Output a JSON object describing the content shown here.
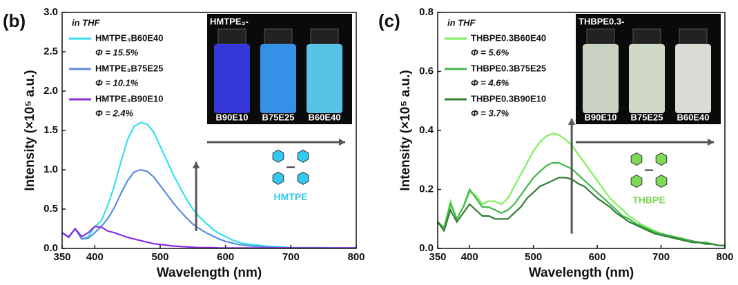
{
  "chart_data": [
    {
      "type": "line",
      "panel": "(b)",
      "annotation": "in THF",
      "x_label": "Wavelength (nm)",
      "y_label": "Intensity (×10⁵ a.u.)",
      "x": [
        350,
        360,
        370,
        380,
        390,
        400,
        410,
        420,
        430,
        440,
        450,
        460,
        470,
        480,
        490,
        500,
        510,
        520,
        530,
        540,
        550,
        560,
        570,
        580,
        590,
        600,
        610,
        620,
        630,
        640,
        650,
        660,
        670,
        680,
        690,
        700,
        710,
        720,
        730,
        740,
        750,
        760,
        770,
        780,
        790,
        800
      ],
      "xlim": [
        350,
        800
      ],
      "xticks": [
        350,
        400,
        500,
        600,
        700,
        800
      ],
      "ylim": [
        0,
        3
      ],
      "yticks": [
        {
          "value": 0,
          "label": "0.0"
        },
        0.5,
        {
          "value": 1,
          "label": "1.0"
        },
        1.5,
        {
          "value": 2,
          "label": "2.0"
        },
        2.5,
        {
          "value": 3,
          "label": "3.0"
        }
      ],
      "legend": "upper left",
      "series": [
        {
          "name": "HMTPE₃B60E40",
          "annotation": "Φ = 15.5%",
          "color": "#33e0f0",
          "values": [
            0.2,
            0.15,
            0.25,
            0.12,
            0.15,
            0.28,
            0.35,
            0.55,
            0.8,
            1.1,
            1.38,
            1.55,
            1.6,
            1.58,
            1.48,
            1.3,
            1.12,
            0.94,
            0.78,
            0.63,
            0.5,
            0.4,
            0.32,
            0.25,
            0.19,
            0.15,
            0.11,
            0.08,
            0.06,
            0.05,
            0.04,
            0.03,
            0.025,
            0.02,
            0.015,
            0.01,
            0.01,
            0.01,
            0.01,
            0.01,
            0.01,
            0.005,
            0.005,
            0.005,
            0.005,
            0.005
          ]
        },
        {
          "name": "HMTPE₃B75E25",
          "annotation": "Φ = 10.1%",
          "color": "#5b8be0",
          "values": [
            0.2,
            0.15,
            0.25,
            0.12,
            0.13,
            0.2,
            0.28,
            0.38,
            0.52,
            0.7,
            0.86,
            0.97,
            1.0,
            0.98,
            0.91,
            0.8,
            0.69,
            0.58,
            0.48,
            0.39,
            0.31,
            0.25,
            0.2,
            0.16,
            0.12,
            0.09,
            0.07,
            0.05,
            0.04,
            0.03,
            0.025,
            0.02,
            0.015,
            0.012,
            0.01,
            0.008,
            0.005,
            0.005,
            0.005,
            0.005,
            0.005,
            0.005,
            0.005,
            0.005,
            0.005,
            0.005
          ]
        },
        {
          "name": "HMTPE₃B90E10",
          "annotation": "Φ =   2.4%",
          "color": "#8a2be2",
          "values": [
            0.2,
            0.14,
            0.25,
            0.15,
            0.2,
            0.28,
            0.27,
            0.22,
            0.2,
            0.17,
            0.14,
            0.12,
            0.1,
            0.08,
            0.06,
            0.05,
            0.04,
            0.03,
            0.025,
            0.02,
            0.015,
            0.01,
            0.01,
            0.01,
            0.005,
            0.005,
            0.005,
            0.005,
            0.005,
            0.005,
            0.005,
            0.005,
            0.005,
            0.005,
            0.005,
            0.005,
            0.005,
            0.005,
            0.005,
            0.005,
            0.005,
            0.005,
            0.005,
            0.005,
            0.005,
            0.005
          ]
        }
      ],
      "inset": {
        "title": "HMTPE₃-",
        "labels": [
          "B90E10",
          "B75E25",
          "B60E40"
        ],
        "colors": [
          "#3a3cf0",
          "#3aa0ff",
          "#5fd8ff"
        ]
      },
      "molecule": {
        "name": "HMTPE",
        "color": "#33c8f0"
      }
    },
    {
      "type": "line",
      "panel": "(c)",
      "annotation": "in THF",
      "x_label": "Wavelength (nm)",
      "y_label": "Intensity (×10⁵ a.u.)",
      "x": [
        350,
        360,
        370,
        380,
        390,
        400,
        410,
        420,
        430,
        440,
        450,
        460,
        470,
        480,
        490,
        500,
        510,
        520,
        530,
        540,
        550,
        560,
        570,
        580,
        590,
        600,
        610,
        620,
        630,
        640,
        650,
        660,
        670,
        680,
        690,
        700,
        710,
        720,
        730,
        740,
        750,
        760,
        770,
        780,
        790,
        800
      ],
      "xlim": [
        350,
        800
      ],
      "xticks": [
        350,
        400,
        500,
        600,
        700,
        800
      ],
      "ylim": [
        0,
        0.8
      ],
      "yticks": [
        {
          "value": 0,
          "label": "0.0"
        },
        0.2,
        0.4,
        0.6,
        0.8
      ],
      "legend": "upper left",
      "series": [
        {
          "name": "THBPE0.3B60E40",
          "annotation": "Φ = 5.6%",
          "color": "#7ef05a",
          "values": [
            0.09,
            0.07,
            0.16,
            0.1,
            0.14,
            0.19,
            0.18,
            0.15,
            0.16,
            0.16,
            0.15,
            0.17,
            0.21,
            0.25,
            0.29,
            0.33,
            0.36,
            0.38,
            0.39,
            0.385,
            0.37,
            0.35,
            0.32,
            0.29,
            0.26,
            0.23,
            0.2,
            0.17,
            0.15,
            0.13,
            0.11,
            0.095,
            0.08,
            0.07,
            0.06,
            0.05,
            0.045,
            0.04,
            0.035,
            0.03,
            0.025,
            0.02,
            0.02,
            0.015,
            0.01,
            0.01
          ]
        },
        {
          "name": "THBPE0.3B75E25",
          "annotation": "Φ = 4.6%",
          "color": "#3fb84a",
          "values": [
            0.09,
            0.07,
            0.15,
            0.1,
            0.14,
            0.2,
            0.17,
            0.14,
            0.14,
            0.13,
            0.12,
            0.13,
            0.15,
            0.18,
            0.21,
            0.24,
            0.26,
            0.28,
            0.29,
            0.29,
            0.28,
            0.27,
            0.25,
            0.23,
            0.21,
            0.19,
            0.17,
            0.15,
            0.13,
            0.11,
            0.1,
            0.085,
            0.075,
            0.065,
            0.055,
            0.05,
            0.045,
            0.04,
            0.035,
            0.03,
            0.025,
            0.02,
            0.02,
            0.015,
            0.01,
            0.01
          ]
        },
        {
          "name": "THBPE0.3B90E10",
          "annotation": "Φ = 3.7%",
          "color": "#2e7d32",
          "values": [
            0.09,
            0.06,
            0.13,
            0.09,
            0.12,
            0.15,
            0.13,
            0.11,
            0.11,
            0.1,
            0.1,
            0.1,
            0.12,
            0.14,
            0.17,
            0.19,
            0.21,
            0.22,
            0.23,
            0.24,
            0.24,
            0.235,
            0.22,
            0.21,
            0.19,
            0.17,
            0.155,
            0.14,
            0.12,
            0.105,
            0.09,
            0.08,
            0.07,
            0.06,
            0.05,
            0.045,
            0.04,
            0.035,
            0.03,
            0.025,
            0.02,
            0.02,
            0.015,
            0.015,
            0.01,
            0.01
          ]
        }
      ],
      "inset": {
        "title": "THBPE0.3-",
        "labels": [
          "B90E10",
          "B75E25",
          "B60E40"
        ],
        "colors": [
          "#dfe8d8",
          "#e6eedd",
          "#eef3ea"
        ]
      },
      "molecule": {
        "name": "THBPE",
        "color": "#7ed957"
      }
    }
  ]
}
